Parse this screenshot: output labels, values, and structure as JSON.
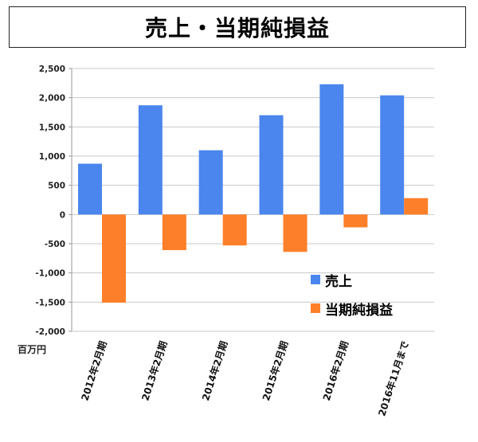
{
  "chart_data": {
    "type": "bar",
    "title": "売上・当期純損益",
    "unit": "百万円",
    "categories": [
      "2012年2月期",
      "2013年2月期",
      "2014年2月期",
      "2015年2月期",
      "2016年2月期",
      "2016年11月まで"
    ],
    "series": [
      {
        "name": "売上",
        "color": "#4b86ee",
        "values": [
          870,
          1870,
          1100,
          1700,
          2230,
          2040
        ]
      },
      {
        "name": "当期純損益",
        "color": "#fd7f29",
        "values": [
          -1510,
          -610,
          -530,
          -640,
          -220,
          280
        ]
      }
    ],
    "ylim": [
      -2000,
      2500
    ],
    "yticks": [
      "2,500",
      "2,000",
      "1,500",
      "1,000",
      "500",
      "0",
      "-500",
      "-1,000",
      "-1,500",
      "-2,000"
    ],
    "grid": true,
    "legend_position": "bottom-right"
  }
}
